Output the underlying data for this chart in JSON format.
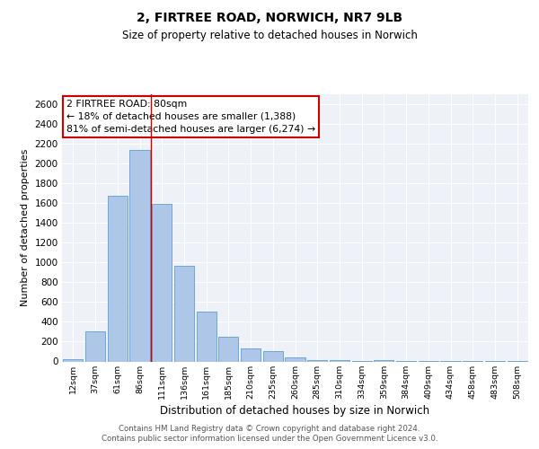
{
  "title1": "2, FIRTREE ROAD, NORWICH, NR7 9LB",
  "title2": "Size of property relative to detached houses in Norwich",
  "xlabel": "Distribution of detached houses by size in Norwich",
  "ylabel": "Number of detached properties",
  "categories": [
    "12sqm",
    "37sqm",
    "61sqm",
    "86sqm",
    "111sqm",
    "136sqm",
    "161sqm",
    "185sqm",
    "210sqm",
    "235sqm",
    "260sqm",
    "285sqm",
    "310sqm",
    "334sqm",
    "359sqm",
    "384sqm",
    "409sqm",
    "434sqm",
    "458sqm",
    "483sqm",
    "508sqm"
  ],
  "values": [
    20,
    300,
    1670,
    2140,
    1595,
    970,
    500,
    248,
    128,
    103,
    40,
    18,
    10,
    5,
    15,
    5,
    5,
    3,
    2,
    2,
    2
  ],
  "bar_color": "#aec6e8",
  "bar_edge_color": "#5a9fd4",
  "vline_x": 3.5,
  "vline_color": "#cc0000",
  "annotation_text": "2 FIRTREE ROAD: 80sqm\n← 18% of detached houses are smaller (1,388)\n81% of semi-detached houses are larger (6,274) →",
  "annotation_box_color": "white",
  "annotation_box_edge_color": "#cc0000",
  "ylim": [
    0,
    2700
  ],
  "yticks": [
    0,
    200,
    400,
    600,
    800,
    1000,
    1200,
    1400,
    1600,
    1800,
    2000,
    2200,
    2400,
    2600
  ],
  "background_color": "#eef2f8",
  "grid_color": "#d0d8e8",
  "footer1": "Contains HM Land Registry data © Crown copyright and database right 2024.",
  "footer2": "Contains public sector information licensed under the Open Government Licence v3.0."
}
